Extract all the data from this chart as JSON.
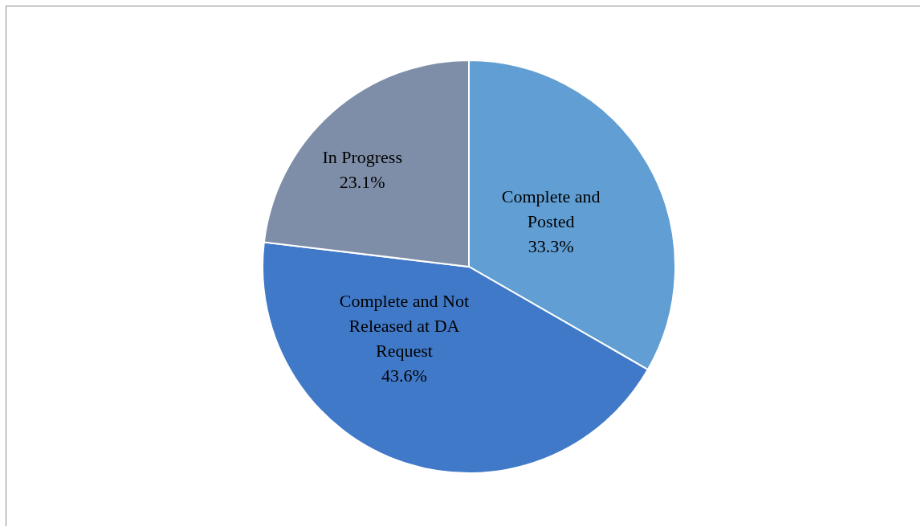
{
  "chart_data": {
    "type": "pie",
    "categories": [
      "Complete and Posted",
      "Complete and Not Released at DA Request",
      "In Progress"
    ],
    "values": [
      33.3,
      43.6,
      23.1
    ],
    "colors": [
      "#609ed3",
      "#4179c9",
      "#7f8ea8"
    ],
    "value_labels": [
      "33.3%",
      "43.6%",
      "23.1%"
    ]
  }
}
